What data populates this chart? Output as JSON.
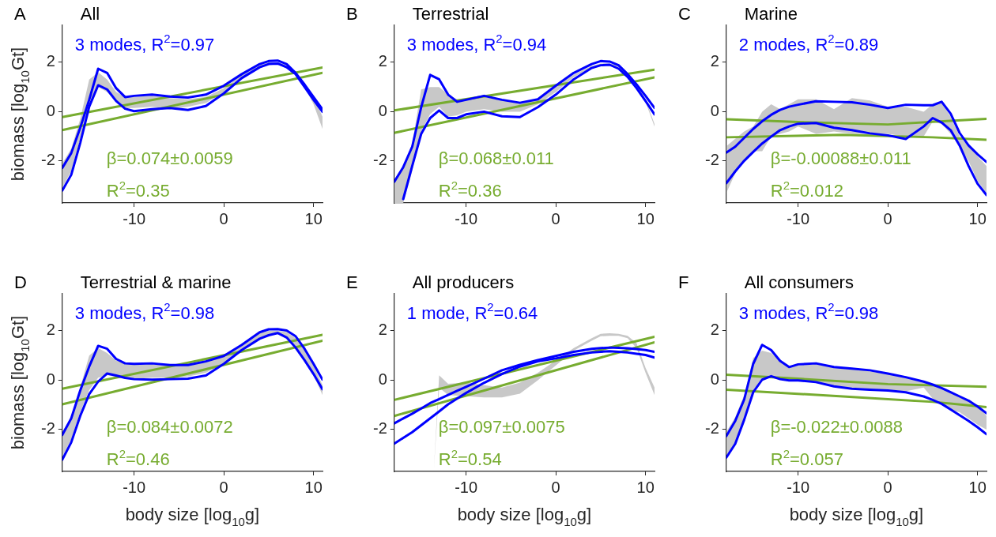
{
  "chart_data": [
    {
      "type": "line",
      "title": "All",
      "ylabel": "biomass [log$_{10}$Gt]",
      "annotations": [
        "A",
        "3 modes, R$^{2}$=0.97",
        "β=0.074±0.0059",
        "R$^{2}$=0.35"
      ],
      "xlim": [
        -18,
        11
      ],
      "xticks": [
        -10,
        0,
        10
      ],
      "ylim": [
        -3.7,
        3.5
      ],
      "yticks": [
        -2,
        0,
        2
      ],
      "x": [
        -18,
        -17,
        -16,
        -15,
        -14,
        -13,
        -12,
        -11,
        -10,
        -8,
        -6,
        -4,
        -2,
        0,
        2,
        4,
        5,
        6,
        7,
        8,
        9,
        10,
        11
      ],
      "series": [
        {
          "color": "#c8c8c8",
          "values": [
            null,
            null,
            null,
            null,
            null,
            null,
            null,
            null,
            null,
            null,
            null,
            null,
            null,
            null,
            null,
            null,
            null,
            null,
            null,
            null,
            null,
            null,
            null
          ],
          "upper": [
            -2.1,
            -1.5,
            -0.3,
            1.3,
            1.6,
            1.3,
            0.8,
            0.6,
            0.6,
            0.65,
            0.55,
            0.5,
            0.6,
            0.95,
            1.5,
            1.9,
            2.0,
            2.0,
            1.9,
            1.6,
            1.15,
            0.6,
            -0.2
          ],
          "lower": [
            -3.1,
            -2.4,
            -1.1,
            0.2,
            1.0,
            0.8,
            0.4,
            0.15,
            0.15,
            0.2,
            0.1,
            0.2,
            0.35,
            0.8,
            1.4,
            1.8,
            1.9,
            1.9,
            1.8,
            1.5,
            1.0,
            0.3,
            -0.7
          ]
        },
        {
          "color": "#77ac30",
          "x": [
            -18,
            11
          ],
          "values": [
            -0.22,
            1.79
          ]
        },
        {
          "color": "#77ac30",
          "x": [
            -18,
            11
          ],
          "values": [
            -0.75,
            1.57
          ]
        },
        {
          "color": "#0000ff",
          "values": [
            -2.28,
            -1.68,
            -0.65,
            0.48,
            1.74,
            1.57,
            0.95,
            0.59,
            0.64,
            0.69,
            0.61,
            0.57,
            0.69,
            1.05,
            1.52,
            1.93,
            2.05,
            2.07,
            1.93,
            1.57,
            1.1,
            0.59,
            0.09
          ]
        },
        {
          "color": "#0000ff",
          "values": [
            -3.2,
            -2.56,
            -1.27,
            0.2,
            1.07,
            0.9,
            0.43,
            0.12,
            0.02,
            0.1,
            0.15,
            0.07,
            0.23,
            0.74,
            1.36,
            1.8,
            1.93,
            1.95,
            1.8,
            1.52,
            1.0,
            0.48,
            -0.01
          ]
        }
      ]
    },
    {
      "type": "line",
      "title": "Terrestrial",
      "annotations": [
        "B",
        "3 modes, R$^{2}$=0.94",
        "β=0.068±0.011",
        "R$^{2}$=0.36"
      ],
      "xlim": [
        -18,
        11
      ],
      "xticks": [
        -10,
        0,
        10
      ],
      "ylim": [
        -3.7,
        3.5
      ],
      "yticks": [
        -2,
        0,
        2
      ],
      "x": [
        -18,
        -17,
        -16,
        -15,
        -14,
        -13,
        -12,
        -11,
        -10,
        -8,
        -6,
        -4,
        -2,
        0,
        2,
        4,
        5,
        6,
        7,
        8,
        9,
        10,
        11
      ],
      "series": [
        {
          "color": "#c8c8c8",
          "values": [
            null,
            null,
            null,
            null,
            null,
            null,
            null,
            null,
            null,
            null,
            null,
            null,
            null,
            null,
            null,
            null,
            null,
            null,
            null,
            null,
            null,
            null,
            null
          ],
          "upper": [
            -2.8,
            -2.2,
            -1.3,
            0.9,
            1.0,
            1.0,
            0.7,
            0.5,
            0.5,
            0.6,
            0.45,
            0.35,
            0.5,
            1.0,
            1.5,
            1.85,
            1.95,
            1.95,
            1.9,
            1.6,
            1.15,
            0.5,
            -0.5
          ],
          "lower": [
            -3.7,
            -3.7,
            -2.4,
            -0.8,
            -0.1,
            0.2,
            -0.2,
            -0.15,
            0.0,
            0.1,
            0.0,
            0.0,
            0.3,
            0.8,
            1.4,
            1.8,
            1.85,
            1.9,
            1.8,
            1.45,
            1.0,
            0.4,
            -0.6
          ]
        },
        {
          "color": "#77ac30",
          "x": [
            -18,
            11
          ],
          "values": [
            0.05,
            1.7
          ]
        },
        {
          "color": "#77ac30",
          "x": [
            -18,
            11
          ],
          "values": [
            -0.86,
            1.39
          ]
        },
        {
          "color": "#0000ff",
          "values": [
            -2.84,
            -2.25,
            -1.42,
            0.18,
            1.49,
            1.31,
            0.69,
            0.4,
            0.48,
            0.64,
            0.48,
            0.36,
            0.5,
            1.05,
            1.57,
            1.93,
            2.05,
            2.03,
            1.88,
            1.52,
            1.1,
            0.64,
            0.15
          ]
        },
        {
          "color": "#0000ff",
          "values": [
            null,
            -3.54,
            -2.2,
            -0.9,
            -0.26,
            0.05,
            -0.26,
            -0.26,
            -0.11,
            0,
            -0.19,
            -0.22,
            0.18,
            0.69,
            1.31,
            1.77,
            1.88,
            1.9,
            1.74,
            1.41,
            0.95,
            0.43,
            -0.11
          ]
        }
      ]
    },
    {
      "type": "line",
      "title": "Marine",
      "annotations": [
        "C",
        "2 modes, R$^{2}$=0.89",
        "β=-0.00088±0.011",
        "R$^{2}$=0.012"
      ],
      "xlim": [
        -18,
        11
      ],
      "xticks": [
        -10,
        0,
        10
      ],
      "ylim": [
        -3.7,
        3.5
      ],
      "yticks": [
        -2,
        0,
        2
      ],
      "x": [
        -18,
        -17,
        -16,
        -15,
        -14,
        -13,
        -12,
        -11,
        -10,
        -8,
        -6,
        -4,
        -2,
        0,
        2,
        4,
        5,
        6,
        7,
        8,
        9,
        10,
        11
      ],
      "series": [
        {
          "color": "#c8c8c8",
          "values": [
            null,
            null,
            null,
            null,
            null,
            null,
            null,
            null,
            null,
            null,
            null,
            null,
            null,
            null,
            null,
            null,
            null,
            null,
            null,
            null,
            null,
            null,
            null
          ],
          "upper": [
            -1.4,
            -1.1,
            -0.8,
            -0.6,
            0.0,
            0.3,
            0.1,
            0.3,
            0.5,
            0.5,
            0.1,
            0.55,
            0.45,
            0.2,
            0.2,
            0.0,
            0.3,
            0.35,
            -0.2,
            -1.0,
            -1.4,
            -1.8,
            -2.2
          ],
          "lower": [
            -3.3,
            -2.5,
            -2.0,
            -1.6,
            -1.6,
            -1.0,
            -0.9,
            -0.8,
            -0.6,
            -0.9,
            -0.8,
            -0.9,
            -0.9,
            -0.9,
            -1.0,
            -1.0,
            -0.4,
            -0.5,
            -0.9,
            -1.4,
            -2.0,
            -2.8,
            -3.3
          ]
        },
        {
          "color": "#77ac30",
          "x": [
            -18,
            -10,
            0,
            5,
            11
          ],
          "values": [
            -0.31,
            -0.42,
            -0.52,
            -0.41,
            -0.29
          ]
        },
        {
          "color": "#77ac30",
          "x": [
            -18,
            -5,
            5,
            11
          ],
          "values": [
            -1.04,
            -0.94,
            -1.04,
            -1.14
          ]
        },
        {
          "color": "#0000ff",
          "values": [
            -1.66,
            -1.42,
            -1.06,
            -0.7,
            -0.39,
            -0.13,
            0.07,
            0.2,
            0.28,
            0.42,
            0.4,
            0.38,
            0.28,
            0.15,
            0.28,
            0.26,
            0.26,
            0.4,
            -0.08,
            -0.86,
            -1.37,
            -1.73,
            -2.04
          ]
        },
        {
          "color": "#0000ff",
          "values": [
            -2.9,
            -2.42,
            -1.99,
            -1.63,
            -1.29,
            -1.01,
            -0.75,
            -0.6,
            -0.49,
            -0.46,
            -0.65,
            -0.75,
            -0.88,
            -0.96,
            -1.11,
            -0.6,
            -0.26,
            -0.44,
            -0.75,
            -1.37,
            -2.2,
            -2.92,
            -3.38
          ]
        }
      ]
    },
    {
      "type": "line",
      "title": "Terrestrial & marine",
      "xlabel": "body size [log$_{10}$g]",
      "ylabel": "biomass [log$_{10}$Gt]",
      "annotations": [
        "D",
        "3 modes, R$^{2}$=0.98",
        "β=0.084±0.0072",
        "R$^{2}$=0.46"
      ],
      "xlim": [
        -18,
        11
      ],
      "xticks": [
        -10,
        0,
        10
      ],
      "ylim": [
        -3.7,
        3.5
      ],
      "yticks": [
        -2,
        0,
        2
      ],
      "x": [
        -18,
        -17,
        -16,
        -15,
        -14,
        -13,
        -12,
        -11,
        -10,
        -8,
        -6,
        -4,
        -2,
        0,
        2,
        4,
        5,
        6,
        7,
        8,
        9,
        10,
        11
      ],
      "series": [
        {
          "color": "#c8c8c8",
          "values": [
            null,
            null,
            null,
            null,
            null,
            null,
            null,
            null,
            null,
            null,
            null,
            null,
            null,
            null,
            null,
            null,
            null,
            null,
            null,
            null,
            null,
            null,
            null
          ],
          "upper": [
            -2.1,
            -1.5,
            -0.3,
            1.0,
            1.3,
            1.1,
            0.8,
            0.7,
            0.65,
            0.65,
            0.6,
            0.6,
            0.75,
            0.95,
            1.4,
            1.9,
            2.0,
            2.0,
            1.95,
            1.7,
            1.2,
            0.6,
            -0.2
          ],
          "lower": [
            -3.1,
            -2.4,
            -1.3,
            -0.4,
            0.1,
            0.2,
            0.15,
            0.1,
            0.05,
            0.1,
            0.1,
            0.15,
            0.3,
            0.7,
            1.25,
            1.7,
            1.85,
            1.9,
            1.75,
            1.35,
            0.85,
            0.2,
            -0.6
          ]
        },
        {
          "color": "#77ac30",
          "x": [
            -18,
            11
          ],
          "values": [
            -0.35,
            1.84
          ]
        },
        {
          "color": "#77ac30",
          "x": [
            -18,
            11
          ],
          "values": [
            -0.98,
            1.6
          ]
        },
        {
          "color": "#0000ff",
          "values": [
            -2.22,
            -1.55,
            -0.42,
            0.55,
            1.39,
            1.27,
            0.86,
            0.68,
            0.66,
            0.68,
            0.61,
            0.61,
            0.76,
            0.98,
            1.43,
            1.94,
            2.06,
            2.07,
            2.01,
            1.78,
            1.27,
            0.66,
            0.02
          ]
        },
        {
          "color": "#0000ff",
          "values": [
            -3.22,
            -2.52,
            -1.45,
            -0.57,
            -0.06,
            0.27,
            0.19,
            0.09,
            0.04,
            0.02,
            0.04,
            0.06,
            0.19,
            0.66,
            1.22,
            1.68,
            1.82,
            1.91,
            1.73,
            1.32,
            0.81,
            0.25,
            -0.37
          ]
        }
      ]
    },
    {
      "type": "line",
      "title": "All producers",
      "xlabel": "body size [log$_{10}$g]",
      "annotations": [
        "E",
        "1 mode, R$^{2}$=0.64",
        "β=0.097±0.0075",
        "R$^{2}$=0.54"
      ],
      "xlim": [
        -18,
        11
      ],
      "xticks": [
        -10,
        0,
        10
      ],
      "ylim": [
        -3.7,
        3.5
      ],
      "yticks": [
        -2,
        0,
        2
      ],
      "x": [
        -18,
        -17,
        -16,
        -15,
        -14,
        -13,
        -12,
        -11,
        -10,
        -8,
        -6,
        -4,
        -2,
        0,
        2,
        4,
        5,
        6,
        7,
        8,
        9,
        10,
        11
      ],
      "series": [
        {
          "color": "#c8c8c8",
          "values": [
            null,
            null,
            null,
            null,
            null,
            null,
            null,
            null,
            null,
            null,
            null,
            null,
            null,
            null,
            null,
            null,
            null,
            null
          ],
          "x": [
            -13.6,
            -13,
            -12,
            -10,
            -8,
            -6,
            -4,
            -2,
            0,
            2,
            4,
            5,
            6,
            7,
            8,
            9,
            10,
            11
          ],
          "upper": [
            -3.7,
            0.2,
            -0.15,
            -0.1,
            -0.2,
            -0.3,
            -0.1,
            0.3,
            0.8,
            1.3,
            1.7,
            1.88,
            1.9,
            1.88,
            1.8,
            1.5,
            0.5,
            -0.3
          ],
          "lower": [
            -3.7,
            -0.3,
            -0.6,
            -0.65,
            -0.7,
            -0.7,
            -0.55,
            0.0,
            0.6,
            1.2,
            1.6,
            1.78,
            1.8,
            1.8,
            1.7,
            1.3,
            0.3,
            -0.6
          ]
        },
        {
          "color": "#77ac30",
          "x": [
            -18,
            11
          ],
          "values": [
            -0.8,
            1.76
          ]
        },
        {
          "color": "#77ac30",
          "x": [
            -18,
            11
          ],
          "values": [
            -1.45,
            1.53
          ]
        },
        {
          "color": "#0000ff",
          "values": [
            -1.75,
            -1.55,
            -1.36,
            -1.15,
            -0.93,
            -0.77,
            -0.6,
            -0.43,
            -0.27,
            0.06,
            0.4,
            0.62,
            0.81,
            0.98,
            1.15,
            1.27,
            1.3,
            1.32,
            1.31,
            1.29,
            1.26,
            1.22,
            1.15
          ]
        },
        {
          "color": "#0000ff",
          "values": [
            -2.57,
            -2.34,
            -2.11,
            -1.83,
            -1.55,
            -1.27,
            -0.98,
            -0.75,
            -0.52,
            -0.11,
            0.25,
            0.55,
            0.76,
            0.88,
            1.02,
            1.12,
            1.15,
            1.17,
            1.15,
            1.12,
            1.07,
            1.02,
            0.91
          ]
        }
      ]
    },
    {
      "type": "line",
      "title": "All consumers",
      "xlabel": "body size [log$_{10}$g]",
      "annotations": [
        "F",
        "3 modes, R$^{2}$=0.98",
        "β=-0.022±0.0088",
        "R$^{2}$=0.057"
      ],
      "xlim": [
        -18,
        11
      ],
      "xticks": [
        -10,
        0,
        10
      ],
      "ylim": [
        -3.7,
        3.5
      ],
      "yticks": [
        -2,
        0,
        2
      ],
      "x": [
        -18,
        -17,
        -16,
        -15,
        -14,
        -13,
        -12,
        -11,
        -10,
        -8,
        -6,
        -4,
        -2,
        0,
        2,
        4,
        5,
        6,
        7,
        8,
        9,
        10,
        11
      ],
      "series": [
        {
          "color": "#c8c8c8",
          "values": [
            null,
            null,
            null,
            null,
            null,
            null,
            null,
            null,
            null,
            null,
            null,
            null,
            null,
            null,
            null,
            null,
            null,
            null,
            null,
            null,
            null,
            null,
            null
          ],
          "upper": [
            -2.1,
            -1.5,
            -0.6,
            0.9,
            1.2,
            1.1,
            0.8,
            0.55,
            0.6,
            0.65,
            0.5,
            0.5,
            0.35,
            0.25,
            0.1,
            -0.05,
            -0.2,
            -0.35,
            -0.5,
            -0.7,
            -0.85,
            -1.0,
            -1.45
          ],
          "lower": [
            -3.1,
            -2.5,
            -1.5,
            -0.4,
            0.1,
            0.2,
            0.05,
            0.0,
            0.0,
            -0.05,
            -0.25,
            -0.3,
            -0.35,
            -0.4,
            -0.45,
            -0.3,
            -0.75,
            -0.9,
            -1.2,
            -1.3,
            -1.55,
            -1.8,
            -2.0
          ]
        },
        {
          "color": "#77ac30",
          "x": [
            -18,
            -10,
            0,
            11
          ],
          "values": [
            0.22,
            0.06,
            -0.16,
            -0.27
          ]
        },
        {
          "color": "#77ac30",
          "x": [
            -18,
            -5,
            5,
            11
          ],
          "values": [
            -0.39,
            -0.66,
            -0.88,
            -1.09
          ]
        },
        {
          "color": "#0000ff",
          "values": [
            -2.27,
            -1.65,
            -0.78,
            0.66,
            1.43,
            1.22,
            0.78,
            0.53,
            0.64,
            0.68,
            0.53,
            0.47,
            0.4,
            0.27,
            0.12,
            -0.06,
            -0.18,
            -0.32,
            -0.49,
            -0.66,
            -0.83,
            -1.07,
            -1.34
          ]
        },
        {
          "color": "#0000ff",
          "values": [
            -3.14,
            -2.58,
            -1.6,
            -0.49,
            0.02,
            0.16,
            0.04,
            -0.01,
            -0.01,
            -0.08,
            -0.25,
            -0.35,
            -0.39,
            -0.42,
            -0.49,
            -0.66,
            -0.8,
            -0.96,
            -1.19,
            -1.42,
            -1.65,
            -1.91,
            -2.19
          ]
        }
      ]
    }
  ]
}
